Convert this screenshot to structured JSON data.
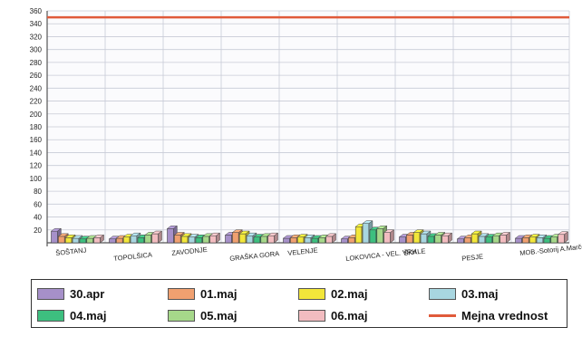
{
  "chart_data": {
    "type": "bar",
    "categories": [
      "ŠOŠTANJ",
      "TOPOLŠICA",
      "ZAVODNJE",
      "GRAŠKA GORA",
      "VELENJE",
      "LOKOVICA - VEL. VRH",
      "ŠKALE",
      "PESJE",
      "MOB.-Sotorij A.Marčeva"
    ],
    "series": [
      {
        "name": "30.apr",
        "color": "#a690c9",
        "values": [
          18,
          6,
          22,
          12,
          7,
          6,
          9,
          6,
          7
        ]
      },
      {
        "name": "01.maj",
        "color": "#f0a070",
        "values": [
          10,
          7,
          12,
          16,
          8,
          8,
          12,
          8,
          8
        ]
      },
      {
        "name": "02.maj",
        "color": "#f2e63a",
        "values": [
          8,
          9,
          10,
          14,
          9,
          25,
          16,
          14,
          9
        ]
      },
      {
        "name": "03.maj",
        "color": "#a8d6e0",
        "values": [
          7,
          11,
          9,
          11,
          8,
          30,
          14,
          10,
          8
        ]
      },
      {
        "name": "04.maj",
        "color": "#3dbf7f",
        "values": [
          6,
          8,
          8,
          9,
          7,
          20,
          10,
          9,
          7
        ]
      },
      {
        "name": "05.maj",
        "color": "#a6d88a",
        "values": [
          7,
          12,
          10,
          10,
          8,
          22,
          12,
          11,
          9
        ]
      },
      {
        "name": "06.maj",
        "color": "#f2bcc0",
        "values": [
          8,
          14,
          11,
          11,
          10,
          16,
          11,
          12,
          13
        ]
      }
    ],
    "limit": {
      "name": "Mejna vrednost",
      "color": "#e05a3a",
      "value": 350
    },
    "ylim": [
      0,
      360
    ],
    "yticks": [
      0,
      20,
      40,
      60,
      80,
      100,
      120,
      140,
      160,
      180,
      200,
      220,
      240,
      260,
      280,
      300,
      320,
      340,
      360
    ],
    "grid": true,
    "legend_position": "bottom"
  },
  "legend": {
    "items": [
      {
        "label": "30.apr",
        "color": "#a690c9"
      },
      {
        "label": "01.maj",
        "color": "#f0a070"
      },
      {
        "label": "02.maj",
        "color": "#f2e63a"
      },
      {
        "label": "03.maj",
        "color": "#a8d6e0"
      },
      {
        "label": "04.maj",
        "color": "#3dbf7f"
      },
      {
        "label": "05.maj",
        "color": "#a6d88a"
      },
      {
        "label": "06.maj",
        "color": "#f2bcc0"
      },
      {
        "label": "Mejna vrednost",
        "color": "#e05a3a"
      }
    ]
  }
}
